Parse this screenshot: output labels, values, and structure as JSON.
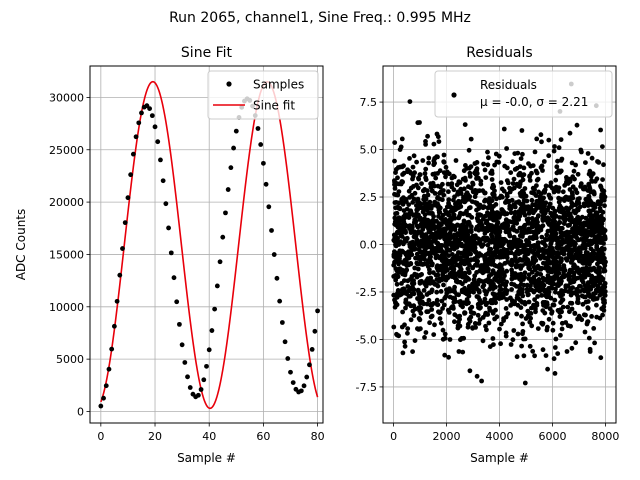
{
  "figure": {
    "suptitle": "Run 2065, channel1, Sine Freq.: 0.995 MHz"
  },
  "chart_data": [
    {
      "type": "line",
      "title": "Sine Fit",
      "xlabel": "Sample #",
      "ylabel": "ADC Counts",
      "xlim": [
        -4,
        82
      ],
      "ylim": [
        -1100,
        33000
      ],
      "xticks": [
        0,
        20,
        40,
        60,
        80
      ],
      "yticks": [
        0,
        5000,
        10000,
        15000,
        20000,
        25000,
        30000
      ],
      "grid": true,
      "legend_position": "top-right",
      "sine_model": {
        "offset": 15900,
        "amplitude": 15600,
        "period": 42.2,
        "peak_sample": 19.2
      },
      "series": [
        {
          "name": "Samples",
          "style": "points",
          "color": "#000000",
          "x": [
            0,
            1,
            2,
            3,
            4,
            5,
            6,
            7,
            8,
            9,
            10,
            11,
            12,
            13,
            14,
            15,
            16,
            17,
            18,
            19,
            20,
            21,
            22,
            23,
            24,
            25,
            26,
            27,
            28,
            29,
            30,
            31,
            32,
            33,
            34,
            35,
            36,
            37,
            38,
            39,
            40,
            41,
            42,
            43,
            44,
            45,
            46,
            47,
            48,
            49,
            50,
            51,
            52,
            53,
            54,
            55,
            56,
            57,
            58,
            59,
            60,
            61,
            62,
            63,
            64,
            65,
            66,
            67,
            68,
            69,
            70,
            71,
            72,
            73,
            74,
            75,
            76,
            77,
            78,
            79,
            80
          ],
          "y": [
            520,
            1270,
            2460,
            4040,
            5960,
            8140,
            10520,
            13020,
            15560,
            18040,
            20420,
            22620,
            24580,
            26240,
            27570,
            28520,
            29070,
            29210,
            28930,
            28260,
            27190,
            25770,
            24030,
            22040,
            19850,
            17530,
            15150,
            12780,
            10480,
            8320,
            6370,
            4680,
            3310,
            2290,
            1650,
            1400,
            1550,
            2100,
            3030,
            4310,
            5890,
            7730,
            9780,
            11990,
            14300,
            16650,
            18970,
            21200,
            23290,
            25160,
            26780,
            28090,
            29050,
            29650,
            29870,
            29710,
            29170,
            28270,
            27030,
            25500,
            23700,
            21700,
            19550,
            17290,
            14990,
            12720,
            10540,
            8500,
            6660,
            5060,
            3750,
            2760,
            2120,
            1860,
            1970,
            2450,
            3290,
            4460,
            5930,
            7660,
            9610
          ]
        },
        {
          "name": "Sine fit",
          "style": "line",
          "color": "#e8000b"
        }
      ]
    },
    {
      "type": "scatter",
      "title": "Residuals",
      "xlabel": "Sample #",
      "ylabel": "",
      "xlim": [
        -400,
        8400
      ],
      "ylim": [
        -9.4,
        9.4
      ],
      "xticks": [
        0,
        2000,
        4000,
        6000,
        8000
      ],
      "yticks": [
        -7.5,
        -5.0,
        -2.5,
        0.0,
        2.5,
        5.0,
        7.5
      ],
      "grid": true,
      "legend_position": "top-right",
      "series": [
        {
          "name": "Residuals",
          "stats_label": "μ = -0.0, σ = 2.21",
          "color": "#000000",
          "n_points": 8000,
          "mean": 0.0,
          "sigma": 2.21,
          "x_range": [
            0,
            8000
          ],
          "y_min": -8.7,
          "y_max": 8.9
        }
      ]
    }
  ]
}
